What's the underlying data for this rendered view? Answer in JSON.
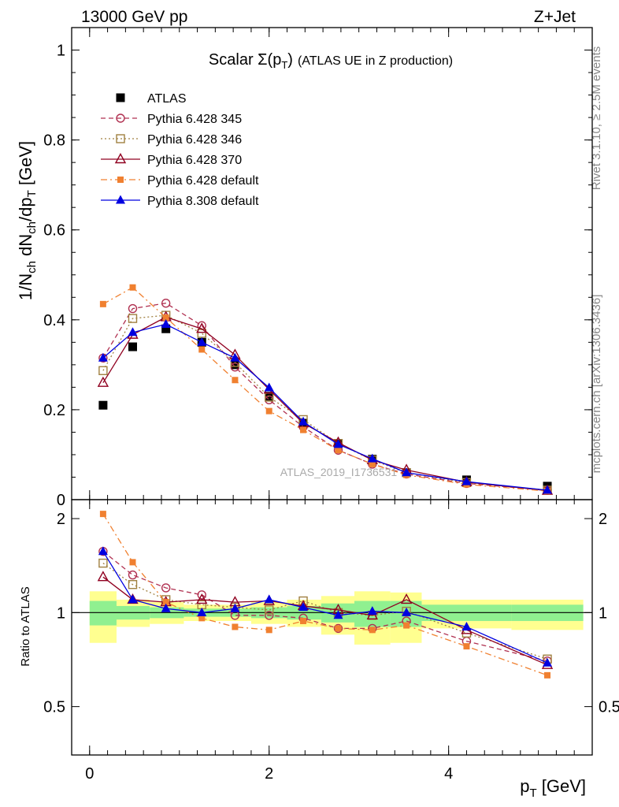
{
  "header": {
    "left": "13000 GeV pp",
    "right": "Z+Jet"
  },
  "title": {
    "main": "Scalar Σ(p",
    "sub": "T",
    "close": ")",
    "rest": "(ATLAS UE in Z production)"
  },
  "side_labels": {
    "rivet": "Rivet 3.1.10, ≥ 2.5M events",
    "mcplots": "mcplots.cern.ch [arXiv:1306.3436]"
  },
  "watermark": "ATLAS_2019_I1736531",
  "colors": {
    "atlas": "#000000",
    "p345": "#b03050",
    "p346": "#a08040",
    "p370": "#900020",
    "p6def": "#f08030",
    "p8def": "#0000e0",
    "band_outer": "#ffff90",
    "band_inner": "#90f090"
  },
  "chart_data": [
    {
      "type": "line",
      "panel": "main",
      "title": "Scalar Σ(pT) (ATLAS UE in Z production)",
      "xlabel": "p_T [GeV]",
      "ylabel_parts": {
        "a": "1/N",
        "b": "ch",
        "c": " dN",
        "d": "ch",
        "e": "/dp",
        "f": "T",
        "g": " [GeV]"
      },
      "xlim": [
        -0.2,
        5.6
      ],
      "ylim": [
        0,
        1.05
      ],
      "yticks": [
        {
          "value": 0,
          "label": "0"
        },
        {
          "value": 0.2,
          "label": "0.2"
        },
        {
          "value": 0.4,
          "label": "0.4"
        },
        {
          "value": 0.6,
          "label": "0.6"
        },
        {
          "value": 0.8,
          "label": "0.8"
        },
        {
          "value": 1,
          "label": "1"
        }
      ],
      "x": [
        0.15,
        0.48,
        0.85,
        1.25,
        1.62,
        2.0,
        2.38,
        2.77,
        3.15,
        3.53,
        4.2,
        5.1
      ],
      "legend_position": "top-left",
      "series": [
        {
          "key": "atlas",
          "name": "ATLAS",
          "marker": "square-filled",
          "dash": "none",
          "show_line": false,
          "values": [
            0.21,
            0.34,
            0.38,
            0.35,
            0.3,
            0.23,
            0.17,
            0.125,
            0.09,
            0.06,
            0.044,
            0.03
          ]
        },
        {
          "key": "p345",
          "name": "Pythia 6.428 345",
          "marker": "circle-open",
          "dash": "dashed",
          "show_line": true,
          "values": [
            0.315,
            0.425,
            0.437,
            0.387,
            0.295,
            0.222,
            0.162,
            0.11,
            0.079,
            0.057,
            0.036,
            0.021
          ]
        },
        {
          "key": "p346",
          "name": "Pythia 6.428 346",
          "marker": "square-open",
          "dash": "dotted",
          "show_line": true,
          "values": [
            0.287,
            0.403,
            0.41,
            0.37,
            0.305,
            0.228,
            0.178,
            0.125,
            0.088,
            0.06,
            0.038,
            0.021
          ]
        },
        {
          "key": "p370",
          "name": "Pythia 6.428 370",
          "marker": "triangle-open",
          "dash": "solid",
          "show_line": true,
          "values": [
            0.26,
            0.367,
            0.406,
            0.38,
            0.322,
            0.245,
            0.17,
            0.127,
            0.088,
            0.066,
            0.039,
            0.02
          ]
        },
        {
          "key": "p6def",
          "name": "Pythia 6.428 default",
          "marker": "square-filled-small",
          "dash": "dashdot",
          "show_line": true,
          "values": [
            0.435,
            0.472,
            0.405,
            0.334,
            0.266,
            0.197,
            0.155,
            0.11,
            0.079,
            0.055,
            0.034,
            0.019
          ]
        },
        {
          "key": "p8def",
          "name": "Pythia 8.308 default",
          "marker": "triangle-filled",
          "dash": "solid",
          "show_line": true,
          "values": [
            0.315,
            0.372,
            0.39,
            0.35,
            0.315,
            0.249,
            0.173,
            0.123,
            0.091,
            0.06,
            0.04,
            0.021
          ]
        }
      ]
    },
    {
      "type": "line",
      "panel": "ratio",
      "ylabel": "Ratio to ATLAS",
      "xlabel": "p_T [GeV]",
      "xlim": [
        -0.2,
        5.6
      ],
      "ylim": [
        0.35,
        2.3
      ],
      "xticks": [
        {
          "value": 0,
          "label": "0"
        },
        {
          "value": 2,
          "label": "2"
        },
        {
          "value": 4,
          "label": "4"
        }
      ],
      "yticks": [
        {
          "value": 0.5,
          "label": "0.5"
        },
        {
          "value": 1,
          "label": "1"
        },
        {
          "value": 2,
          "label": "2"
        }
      ],
      "bins": [
        {
          "lo": 0.0,
          "hi": 0.3,
          "outer": [
            0.8,
            1.17
          ],
          "inner": [
            0.91,
            1.09
          ]
        },
        {
          "lo": 0.3,
          "hi": 0.67,
          "outer": [
            0.9,
            1.1
          ],
          "inner": [
            0.95,
            1.05
          ]
        },
        {
          "lo": 0.67,
          "hi": 1.05,
          "outer": [
            0.92,
            1.08
          ],
          "inner": [
            0.96,
            1.04
          ]
        },
        {
          "lo": 1.05,
          "hi": 1.45,
          "outer": [
            0.94,
            1.06
          ],
          "inner": [
            0.97,
            1.03
          ]
        },
        {
          "lo": 1.45,
          "hi": 1.8,
          "outer": [
            0.94,
            1.06
          ],
          "inner": [
            0.97,
            1.03
          ]
        },
        {
          "lo": 1.8,
          "hi": 2.2,
          "outer": [
            0.92,
            1.08
          ],
          "inner": [
            0.96,
            1.04
          ]
        },
        {
          "lo": 2.2,
          "hi": 2.58,
          "outer": [
            0.9,
            1.1
          ],
          "inner": [
            0.95,
            1.05
          ]
        },
        {
          "lo": 2.58,
          "hi": 2.95,
          "outer": [
            0.85,
            1.13
          ],
          "inner": [
            0.93,
            1.07
          ]
        },
        {
          "lo": 2.95,
          "hi": 3.35,
          "outer": [
            0.79,
            1.17
          ],
          "inner": [
            0.9,
            1.09
          ]
        },
        {
          "lo": 3.35,
          "hi": 3.7,
          "outer": [
            0.8,
            1.16
          ],
          "inner": [
            0.9,
            1.09
          ]
        },
        {
          "lo": 3.7,
          "hi": 4.7,
          "outer": [
            0.89,
            1.1
          ],
          "inner": [
            0.94,
            1.06
          ]
        },
        {
          "lo": 4.7,
          "hi": 5.5,
          "outer": [
            0.88,
            1.1
          ],
          "inner": [
            0.94,
            1.06
          ]
        }
      ],
      "x": [
        0.15,
        0.48,
        0.85,
        1.25,
        1.62,
        2.0,
        2.38,
        2.77,
        3.15,
        3.53,
        4.2,
        5.1
      ],
      "series": [
        {
          "key": "p345",
          "marker": "circle-open",
          "dash": "dashed",
          "values": [
            1.57,
            1.32,
            1.2,
            1.14,
            0.98,
            0.98,
            0.96,
            0.89,
            0.89,
            0.94,
            0.81,
            0.7
          ]
        },
        {
          "key": "p346",
          "marker": "square-open",
          "dash": "dotted",
          "values": [
            1.44,
            1.23,
            1.1,
            1.06,
            1.04,
            1.02,
            1.09,
            1.0,
            0.98,
            1.01,
            0.86,
            0.71
          ]
        },
        {
          "key": "p370",
          "marker": "triangle-open",
          "dash": "solid",
          "values": [
            1.3,
            1.1,
            1.08,
            1.1,
            1.08,
            1.09,
            1.05,
            1.02,
            0.98,
            1.1,
            0.88,
            0.68
          ]
        },
        {
          "key": "p6def",
          "marker": "square-filled-small",
          "dash": "dashdot",
          "values": [
            2.07,
            1.45,
            1.08,
            0.96,
            0.9,
            0.88,
            0.94,
            0.89,
            0.88,
            0.91,
            0.78,
            0.63
          ]
        },
        {
          "key": "p8def",
          "marker": "triangle-filled",
          "dash": "solid",
          "values": [
            1.57,
            1.1,
            1.03,
            1.0,
            1.03,
            1.1,
            1.04,
            0.98,
            1.01,
            1.0,
            0.9,
            0.69
          ]
        }
      ]
    }
  ]
}
